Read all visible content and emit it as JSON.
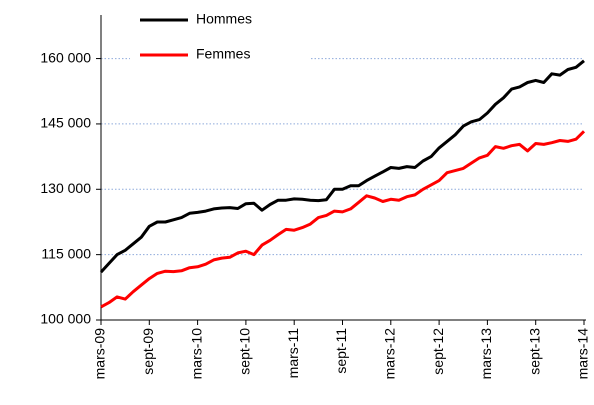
{
  "chart_data": {
    "type": "line",
    "categories": [
      "mars-09",
      null,
      null,
      null,
      null,
      null,
      "sept-09",
      null,
      null,
      null,
      null,
      null,
      "mars-10",
      null,
      null,
      null,
      null,
      null,
      "sept-10",
      null,
      null,
      null,
      null,
      null,
      "mars-11",
      null,
      null,
      null,
      null,
      null,
      "sept-11",
      null,
      null,
      null,
      null,
      null,
      "mars-12",
      null,
      null,
      null,
      null,
      null,
      "sept-12",
      null,
      null,
      null,
      null,
      null,
      "mars-13",
      null,
      null,
      null,
      null,
      null,
      "sept-13",
      null,
      null,
      null,
      null,
      null,
      "mars-14"
    ],
    "series": [
      {
        "name": "Hommes",
        "color": "#000000",
        "values": [
          111000,
          113000,
          115000,
          116000,
          117500,
          119000,
          121500,
          122500,
          122500,
          123000,
          123500,
          124500,
          124700,
          125000,
          125500,
          125700,
          125800,
          125600,
          126700,
          126800,
          125200,
          126500,
          127500,
          127500,
          127800,
          127700,
          127500,
          127400,
          127600,
          130000,
          130000,
          130800,
          130800,
          132000,
          133000,
          134000,
          135000,
          134800,
          135200,
          135000,
          136500,
          137500,
          139500,
          141000,
          142500,
          144500,
          145500,
          146000,
          147500,
          149500,
          151000,
          153000,
          153500,
          154500,
          155000,
          154500,
          156500,
          156200,
          157500,
          158000,
          159500
        ]
      },
      {
        "name": "Femmes",
        "color": "#ff0000",
        "values": [
          103000,
          104000,
          105300,
          104800,
          106500,
          108000,
          109500,
          110700,
          111200,
          111100,
          111300,
          112000,
          112200,
          112800,
          113800,
          114200,
          114400,
          115400,
          115800,
          115000,
          117200,
          118300,
          119600,
          120800,
          120600,
          121200,
          122000,
          123500,
          124000,
          125000,
          124800,
          125500,
          127000,
          128500,
          128000,
          127200,
          127700,
          127500,
          128300,
          128700,
          130000,
          131000,
          132000,
          133800,
          134300,
          134800,
          136000,
          137200,
          137800,
          139800,
          139400,
          140000,
          140300,
          138800,
          140500,
          140300,
          140700,
          141200,
          141000,
          141500,
          143300
        ]
      }
    ],
    "ylim": [
      100000,
      170000
    ],
    "yticks": [
      {
        "value": 100000,
        "label": "100 000"
      },
      {
        "value": 115000,
        "label": "115 000"
      },
      {
        "value": 130000,
        "label": "130 000"
      },
      {
        "value": 145000,
        "label": "145 000"
      },
      {
        "value": 160000,
        "label": "160 000"
      }
    ],
    "grid": true,
    "legend": "upper left"
  }
}
